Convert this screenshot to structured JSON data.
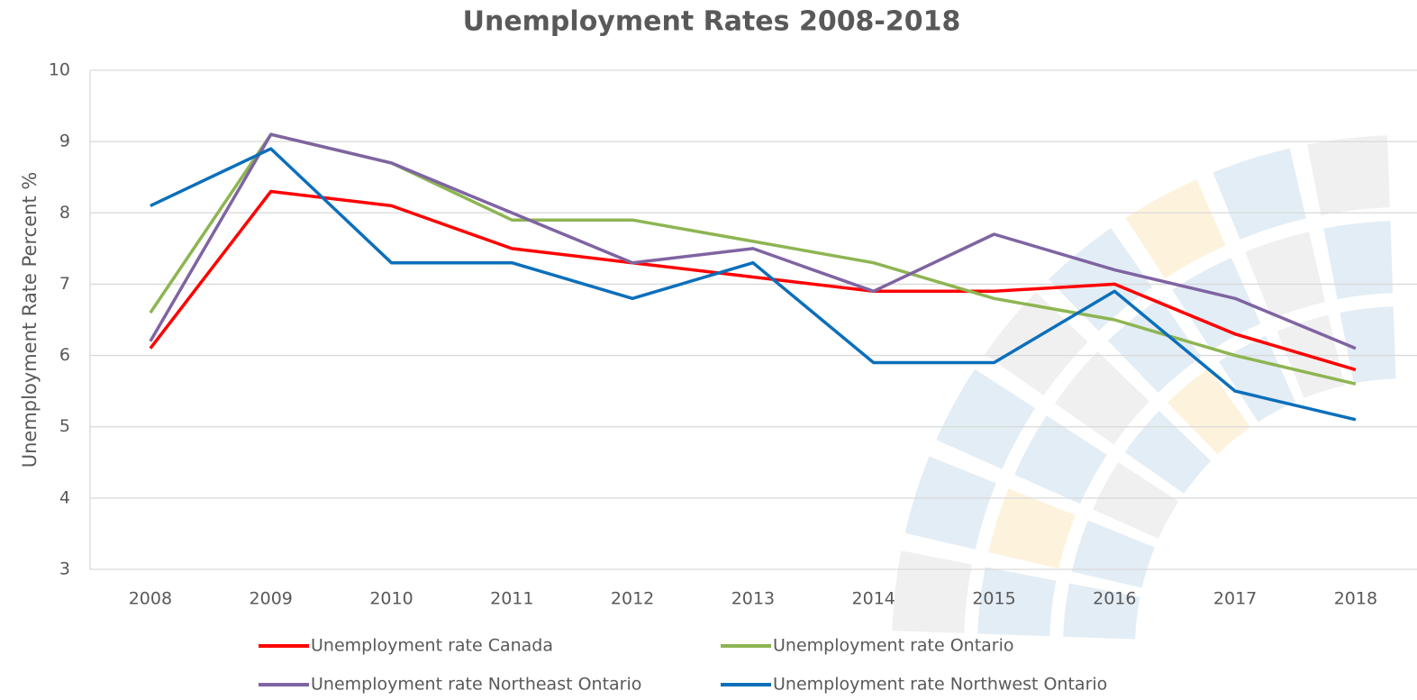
{
  "chart_data": {
    "type": "line",
    "title": "Unemployment Rates 2008-2018",
    "y_label": "Unemployment Rate Percent %",
    "categories": [
      "2008",
      "2009",
      "2010",
      "2011",
      "2012",
      "2013",
      "2014",
      "2015",
      "2016",
      "2017",
      "2018"
    ],
    "series": [
      {
        "name": "Unemployment rate Canada",
        "color": "#ff0000",
        "values": [
          6.1,
          8.3,
          8.1,
          7.5,
          7.3,
          7.1,
          6.9,
          6.9,
          7.0,
          6.3,
          5.8
        ]
      },
      {
        "name": "Unemployment rate Ontario",
        "color": "#8db552",
        "values": [
          6.6,
          9.1,
          8.7,
          7.9,
          7.9,
          7.6,
          7.3,
          6.8,
          6.5,
          6.0,
          5.6
        ]
      },
      {
        "name": "Unemployment rate Northeast Ontario",
        "color": "#7f64a2",
        "values": [
          6.2,
          9.1,
          8.7,
          8.0,
          7.3,
          7.5,
          6.9,
          7.7,
          7.2,
          6.8,
          6.1
        ]
      },
      {
        "name": "Unemployment rate Northwest Ontario",
        "color": "#0b6fbb",
        "values": [
          8.1,
          8.9,
          7.3,
          7.3,
          6.8,
          7.3,
          5.9,
          5.9,
          6.9,
          5.5,
          5.1
        ]
      }
    ],
    "ylim": [
      3,
      10
    ],
    "yticks": [
      3,
      4,
      5,
      6,
      7,
      8,
      9,
      10
    ],
    "grid": true,
    "legend": "bottom"
  }
}
